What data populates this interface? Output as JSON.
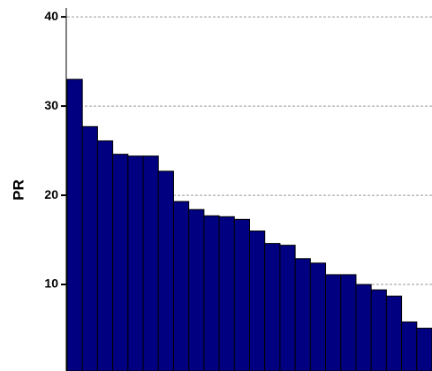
{
  "chart_data": {
    "type": "bar",
    "ylabel": "PR",
    "values": [
      33,
      27.7,
      26.1,
      24.6,
      24.4,
      24.4,
      22.7,
      19.3,
      18.4,
      17.7,
      17.6,
      17.3,
      16,
      14.6,
      14.4,
      12.9,
      12.4,
      11.1,
      11.1,
      10,
      9.4,
      8.7,
      5.8,
      5.1
    ],
    "color": "#000080",
    "ylim": [
      0.3,
      41
    ],
    "yticks": [
      10,
      20,
      30,
      40
    ],
    "grid": true
  }
}
